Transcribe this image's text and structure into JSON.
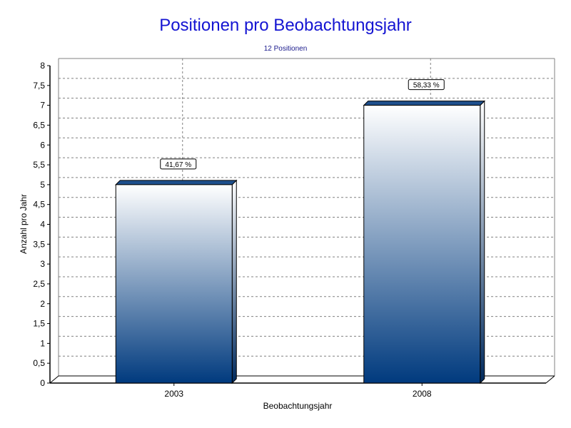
{
  "chart_data": {
    "type": "bar",
    "title": "Positionen pro Beobachtungsjahr",
    "subtitle": "12 Positionen",
    "xlabel": "Beobachtungsjahr",
    "ylabel": "Anzahl pro Jahr",
    "categories": [
      "2003",
      "2008"
    ],
    "values": [
      5,
      7
    ],
    "data_labels": [
      "41,67 %",
      "58,33 %"
    ],
    "ylim": [
      0,
      8
    ],
    "yticks": [
      "0",
      "0,5",
      "1",
      "1,5",
      "2",
      "2,5",
      "3",
      "3,5",
      "4",
      "4,5",
      "5",
      "5,5",
      "6",
      "6,5",
      "7",
      "7,5",
      "8"
    ],
    "grid": true,
    "legend": "none",
    "colors": {
      "bar_top": "#ffffff",
      "bar_bottom": "#003a7e",
      "title": "#1414d2",
      "subtitle": "#1a1a8c"
    }
  }
}
